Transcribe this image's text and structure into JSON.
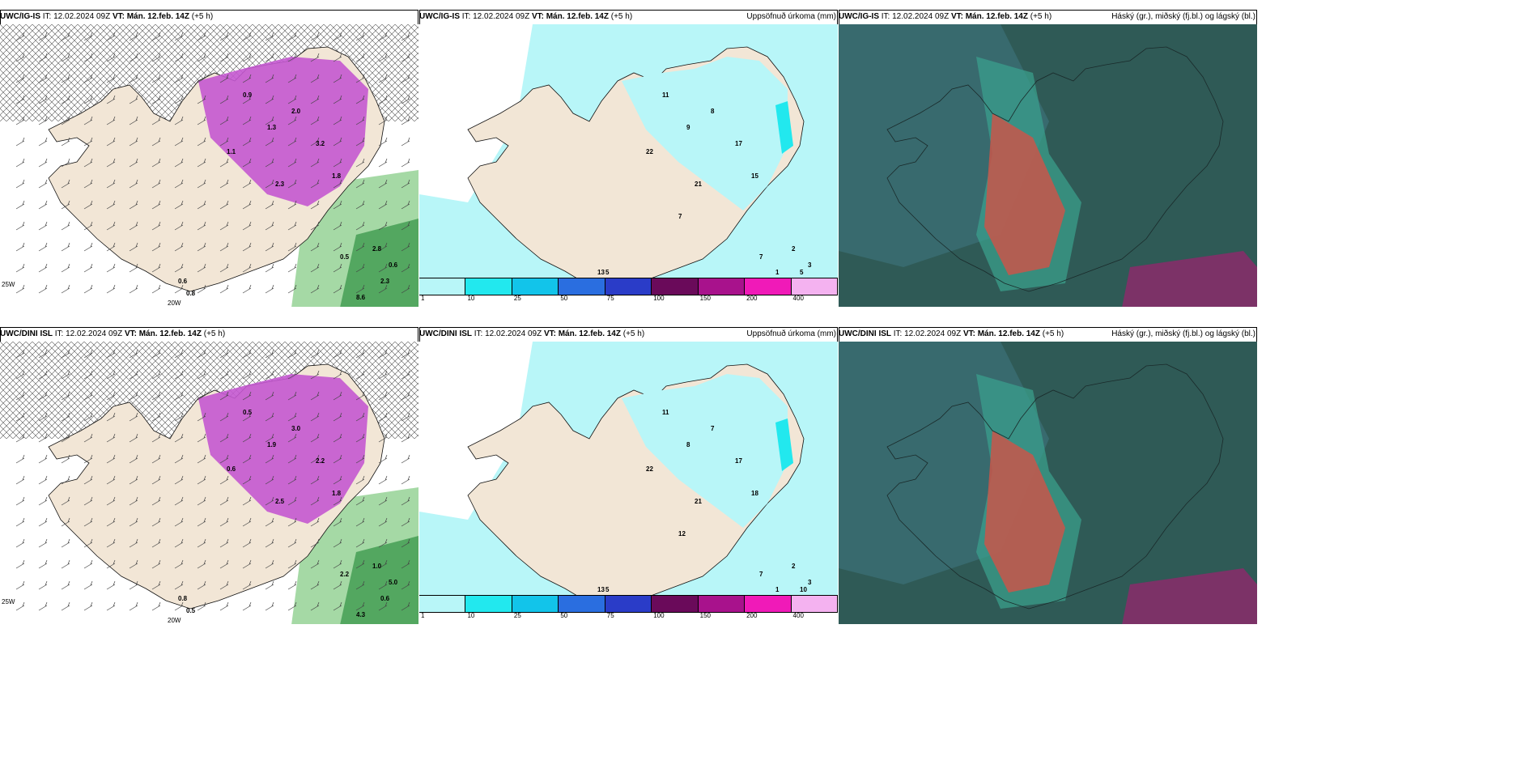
{
  "panels": [
    {
      "id": "r1c1",
      "model": "UWC/IG-IS",
      "it": "IT: 12.02.2024 09Z",
      "vt_label": "VT:",
      "vt": "Mán. 12.feb. 14Z",
      "lead": "(+5 h)",
      "right_title": "",
      "kind": "wind",
      "numbers": [
        "0.9",
        "1.3",
        "2.0",
        "3.2",
        "1.8",
        "2.3",
        "1.1",
        "0.6",
        "0.8",
        "0.5",
        "2.8",
        "8.6",
        "0.6",
        "2.3"
      ]
    },
    {
      "id": "r1c2",
      "model": "UWC/IG-IS",
      "it": "IT: 12.02.2024 09Z",
      "vt_label": "VT:",
      "vt": "Mán. 12.feb. 14Z",
      "lead": "(+5 h)",
      "right_title": "Uppsöfnuð úrkoma (mm)",
      "kind": "precip",
      "numbers": [
        "11",
        "9",
        "8",
        "17",
        "15",
        "21",
        "22",
        "13",
        "5",
        "7",
        "2",
        "1",
        "3",
        "5",
        "7"
      ]
    },
    {
      "id": "r1c3",
      "model": "UWC/IG-IS",
      "it": "IT: 12.02.2024 09Z",
      "vt_label": "VT:",
      "vt": "Mán. 12.feb. 14Z",
      "lead": "(+5 h)",
      "right_title": "Háský (gr.), miðský (fj.bl.) og lágský (bl.)",
      "kind": "cloud",
      "numbers": []
    },
    {
      "id": "r2c1",
      "model": "UWC/DINI ISL",
      "it": "IT: 12.02.2024 09Z",
      "vt_label": "VT:",
      "vt": "Mán. 12.feb. 14Z",
      "lead": "(+5 h)",
      "right_title": "",
      "kind": "wind",
      "numbers": [
        "0.5",
        "1.9",
        "3.0",
        "2.2",
        "1.8",
        "2.5",
        "0.6",
        "0.8",
        "0.5",
        "2.2",
        "1.0",
        "4.3",
        "5.0",
        "0.6"
      ]
    },
    {
      "id": "r2c2",
      "model": "UWC/DINI ISL",
      "it": "IT: 12.02.2024 09Z",
      "vt_label": "VT:",
      "vt": "Mán. 12.feb. 14Z",
      "lead": "(+5 h)",
      "right_title": "Uppsöfnuð úrkoma (mm)",
      "kind": "precip",
      "numbers": [
        "11",
        "8",
        "7",
        "17",
        "18",
        "21",
        "22",
        "13",
        "5",
        "7",
        "2",
        "1",
        "3",
        "10",
        "12"
      ]
    },
    {
      "id": "r2c3",
      "model": "UWC/DINI ISL",
      "it": "IT: 12.02.2024 09Z",
      "vt_label": "VT:",
      "vt": "Mán. 12.feb. 14Z",
      "lead": "(+5 h)",
      "right_title": "Háský (gr.), miðský (fj.bl.) og lágský (bl.)",
      "kind": "cloud",
      "numbers": []
    }
  ],
  "axis_labels": {
    "lon_label": "20W",
    "lat_left": "25W"
  },
  "legend": {
    "labels": [
      "1",
      "10",
      "25",
      "50",
      "75",
      "100",
      "150",
      "200",
      "400"
    ],
    "colors": [
      "#b8f6f8",
      "#22e8ee",
      "#12c4ea",
      "#2a6ee0",
      "#2a3cc8",
      "#6a0a5a",
      "#a8128c",
      "#f01ab8",
      "#f4b2f0"
    ]
  },
  "colors": {
    "land": "#f2e6d6",
    "coast": "#111111",
    "sea_precip": "#b8f6f8",
    "magenta": "#c458d0",
    "green": "#8fcf8f",
    "cloud_dark": "#2f5a56",
    "cloud_teal": "#3aa38e",
    "cloud_red": "#c8564a"
  }
}
